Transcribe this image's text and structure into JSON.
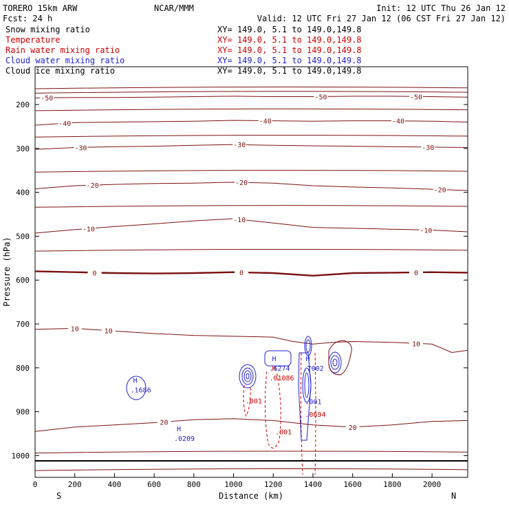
{
  "header": {
    "model": "TORERO  15km ARW",
    "org": "NCAR/MMM",
    "init": "Init: 12 UTC Thu 26 Jan 12",
    "fcst": "Fcst:    24 h",
    "valid": "Valid: 12 UTC Fri 27 Jan 12 (06 CST Fri 27 Jan 12)"
  },
  "legend": [
    {
      "label": "Snow mixing ratio",
      "xy": "XY= 149.0,  5.1 to 149.0,149.8",
      "color": "#000000"
    },
    {
      "label": "Temperature",
      "xy": "XY= 149.0,  5.1 to 149.0,149.8",
      "color": "#cc0000"
    },
    {
      "label": "Rain water mixing ratio",
      "xy": "XY= 149.0,  5.1 to 149.0,149.8",
      "color": "#cc0000"
    },
    {
      "label": "Cloud water mixing ratio",
      "xy": "XY= 149.0,  5.1 to 149.0,149.8",
      "color": "#1f1fcc"
    },
    {
      "label": "Cloud ice mixing ratio",
      "xy": "XY= 149.0,  5.1 to 149.0,149.8",
      "color": "#000000"
    }
  ],
  "chart_data": {
    "type": "contour",
    "xlabel": "Distance (km)",
    "ylabel": "Pressure (hPa)",
    "xlim": [
      0,
      2180
    ],
    "ylim": [
      150,
      1050
    ],
    "x_ticks": [
      0,
      200,
      400,
      600,
      800,
      1000,
      1200,
      1400,
      1600,
      1800,
      2000
    ],
    "y_ticks": [
      200,
      300,
      400,
      500,
      600,
      700,
      800,
      900,
      1000
    ],
    "y_scale": "log",
    "left_end_label": "S",
    "right_end_label": "N",
    "temperature_isotherms": [
      {
        "value": -50,
        "labels_at_km": [
          60,
          1440,
          1920
        ],
        "points": [
          [
            0,
            185
          ],
          [
            200,
            184
          ],
          [
            400,
            184
          ],
          [
            600,
            183
          ],
          [
            800,
            182
          ],
          [
            1000,
            181
          ],
          [
            1200,
            182
          ],
          [
            1400,
            182
          ],
          [
            1600,
            181
          ],
          [
            1800,
            181
          ],
          [
            2000,
            182
          ],
          [
            2180,
            183
          ]
        ]
      },
      {
        "value": -40,
        "labels_at_km": [
          150,
          1160,
          1830
        ],
        "points": [
          [
            0,
            247
          ],
          [
            200,
            241
          ],
          [
            400,
            240
          ],
          [
            600,
            239
          ],
          [
            800,
            238
          ],
          [
            1000,
            236
          ],
          [
            1200,
            237
          ],
          [
            1400,
            238
          ],
          [
            1600,
            237
          ],
          [
            1800,
            237
          ],
          [
            2000,
            238
          ],
          [
            2180,
            240
          ]
        ]
      },
      {
        "value": -30,
        "labels_at_km": [
          230,
          1030,
          1980
        ],
        "points": [
          [
            0,
            302
          ],
          [
            200,
            298
          ],
          [
            400,
            296
          ],
          [
            600,
            295
          ],
          [
            800,
            293
          ],
          [
            1000,
            291
          ],
          [
            1200,
            293
          ],
          [
            1400,
            294
          ],
          [
            1600,
            295
          ],
          [
            1800,
            296
          ],
          [
            2000,
            297
          ],
          [
            2180,
            298
          ]
        ]
      },
      {
        "value": -20,
        "labels_at_km": [
          290,
          1040,
          2040
        ],
        "points": [
          [
            0,
            392
          ],
          [
            200,
            385
          ],
          [
            400,
            382
          ],
          [
            600,
            380
          ],
          [
            800,
            379
          ],
          [
            1000,
            377
          ],
          [
            1200,
            379
          ],
          [
            1400,
            385
          ],
          [
            1600,
            388
          ],
          [
            1800,
            390
          ],
          [
            2000,
            393
          ],
          [
            2180,
            396
          ]
        ]
      },
      {
        "value": -10,
        "labels_at_km": [
          270,
          1030,
          1970
        ],
        "points": [
          [
            0,
            493
          ],
          [
            200,
            485
          ],
          [
            400,
            478
          ],
          [
            600,
            472
          ],
          [
            800,
            465
          ],
          [
            1000,
            460
          ],
          [
            1200,
            470
          ],
          [
            1400,
            480
          ],
          [
            1600,
            482
          ],
          [
            1800,
            484
          ],
          [
            2000,
            486
          ],
          [
            2180,
            490
          ]
        ]
      },
      {
        "value": 0,
        "labels_at_km": [
          300,
          1040,
          1920
        ],
        "points": [
          [
            0,
            580
          ],
          [
            200,
            582
          ],
          [
            400,
            584
          ],
          [
            600,
            585
          ],
          [
            800,
            584
          ],
          [
            1000,
            582
          ],
          [
            1200,
            584
          ],
          [
            1400,
            590
          ],
          [
            1600,
            584
          ],
          [
            1800,
            583
          ],
          [
            2000,
            582
          ],
          [
            2180,
            583
          ]
        ]
      },
      {
        "value": 10,
        "labels_at_km": [
          200,
          370,
          1920
        ],
        "points": [
          [
            0,
            712
          ],
          [
            200,
            710
          ],
          [
            400,
            716
          ],
          [
            600,
            722
          ],
          [
            800,
            726
          ],
          [
            1000,
            728
          ],
          [
            1200,
            730
          ],
          [
            1300,
            740
          ],
          [
            1400,
            746
          ],
          [
            1500,
            742
          ],
          [
            1600,
            740
          ],
          [
            1800,
            742
          ],
          [
            2000,
            746
          ],
          [
            2100,
            765
          ],
          [
            2180,
            760
          ]
        ]
      },
      {
        "value": 20,
        "labels_at_km": [
          650,
          1600
        ],
        "points": [
          [
            0,
            945
          ],
          [
            200,
            935
          ],
          [
            400,
            930
          ],
          [
            600,
            925
          ],
          [
            800,
            918
          ],
          [
            1000,
            916
          ],
          [
            1200,
            920
          ],
          [
            1400,
            930
          ],
          [
            1600,
            935
          ],
          [
            1800,
            930
          ],
          [
            2000,
            922
          ],
          [
            2180,
            920
          ]
        ]
      }
    ],
    "field_extrema": [
      {
        "label": "H",
        "value": ".1686",
        "x_km": 480,
        "p_hpa": 850,
        "field": "Cloud water mixing ratio"
      },
      {
        "label": "H",
        "value": ".0209",
        "x_km": 700,
        "p_hpa": 960,
        "field": "Cloud water mixing ratio"
      },
      {
        "label": "H",
        "value": ".6274",
        "x_km": 1180,
        "p_hpa": 800,
        "field": "Cloud water mixing ratio"
      },
      {
        "label": "H",
        "value": ".01086",
        "x_km": 1180,
        "p_hpa": 822,
        "field": "Rain water mixing ratio"
      },
      {
        "label": "H",
        "value": ".7002",
        "x_km": 1350,
        "p_hpa": 800,
        "field": "Cloud water mixing ratio"
      },
      {
        "label": "",
        "value": ".001",
        "x_km": 1060,
        "p_hpa": 875,
        "field": "Rain water mixing ratio"
      },
      {
        "label": "",
        "value": ".001",
        "x_km": 1360,
        "p_hpa": 876,
        "field": "Cloud water mixing ratio"
      },
      {
        "label": "",
        "value": ".0694",
        "x_km": 1360,
        "p_hpa": 905,
        "field": "Rain water mixing ratio"
      },
      {
        "label": "",
        "value": ".001",
        "x_km": 1210,
        "p_hpa": 945,
        "field": "Rain water mixing ratio"
      }
    ]
  }
}
